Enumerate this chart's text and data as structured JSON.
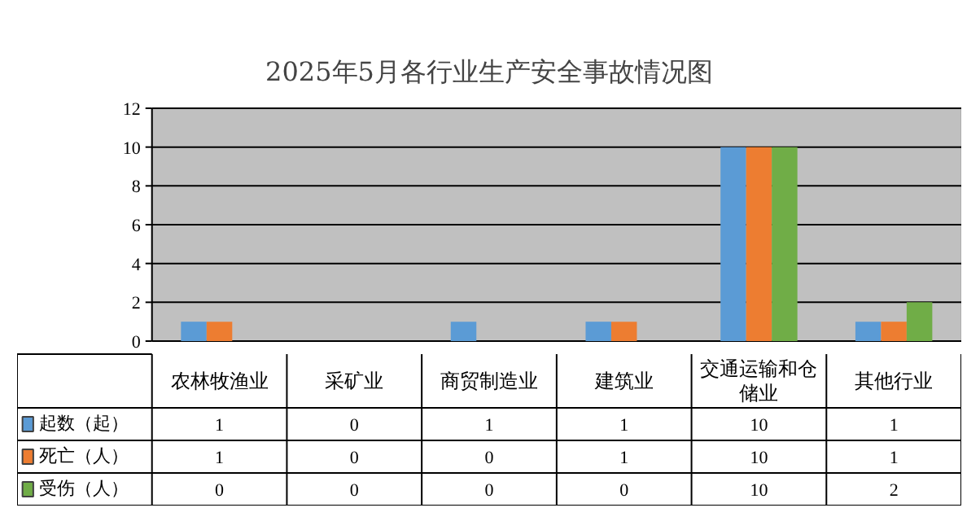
{
  "chart_data": {
    "type": "bar",
    "title": "2025年5月各行业生产安全事故情况图",
    "categories": [
      "农林牧渔业",
      "采矿业",
      "商贸制造业",
      "建筑业",
      "交通运输和仓储业",
      "其他行业"
    ],
    "series": [
      {
        "name": "起数（起）",
        "color": "#5b9bd5",
        "values": [
          1,
          0,
          1,
          1,
          10,
          1
        ]
      },
      {
        "name": "死亡（人）",
        "color": "#ed7d31",
        "values": [
          1,
          0,
          0,
          1,
          10,
          1
        ]
      },
      {
        "name": "受伤（人）",
        "color": "#70ad47",
        "values": [
          0,
          0,
          0,
          0,
          10,
          2
        ]
      }
    ],
    "ylim": [
      0,
      12
    ],
    "yticks": [
      0,
      2,
      4,
      6,
      8,
      10,
      12
    ],
    "grid": "y",
    "data_labels": true,
    "legend": "bottom"
  }
}
